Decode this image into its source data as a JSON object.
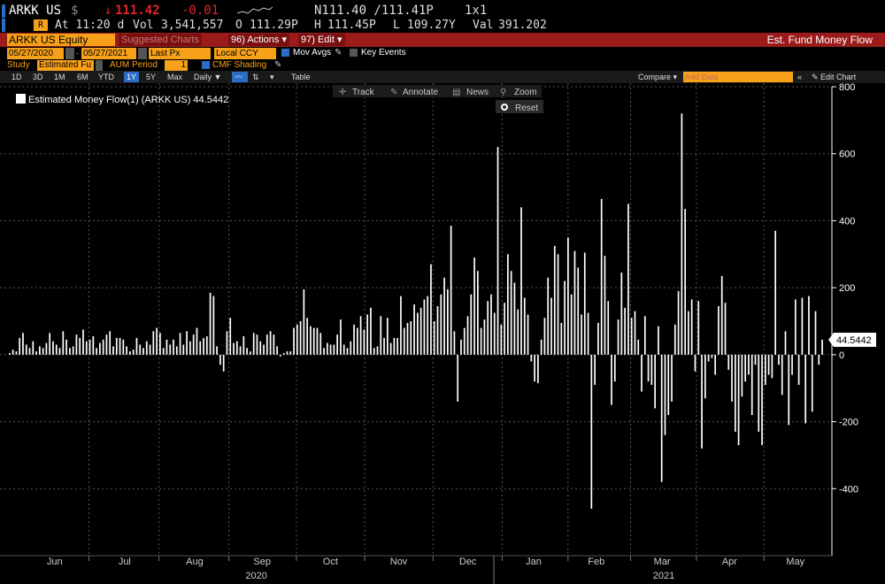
{
  "header": {
    "ticker": "ARKK US",
    "currency": "$",
    "last_price": "111.42",
    "change": "-0.01",
    "n_quote": "N111.40 /111.41P",
    "size": "1x1",
    "time_label": "At 11:20 d",
    "vol_label": "Vol",
    "vol_value": "3,541,557",
    "open_label": "O",
    "open_value": "111.29P",
    "high_label": "H",
    "high_value": "111.45P",
    "low_label": "L",
    "low_value": "109.27Y",
    "val_label": "Val",
    "val_value": "391.202"
  },
  "toolbar": {
    "security": "ARKK US Equity",
    "suggested": "Suggested Charts",
    "actions": "96) Actions",
    "edit": "97) Edit",
    "title": "Est. Fund Money Flow",
    "date_from": "05/27/2020",
    "date_to": "05/27/2021",
    "last_px": "Last Px",
    "ccy": "Local CCY",
    "mov_avgs": "Mov Avgs",
    "key_events": "Key Events",
    "study_label": "Study",
    "study_value": "Estimated Fu",
    "aum_label": "AUM Period",
    "aum_value": "1",
    "cmf_label": "CMF Shading",
    "periods": [
      "1D",
      "3D",
      "1M",
      "6M",
      "YTD",
      "1Y",
      "5Y",
      "Max"
    ],
    "selected_period": "1Y",
    "daily": "Daily",
    "table": "Table",
    "compare": "Compare",
    "add_data": "Add Data",
    "edit_chart": "Edit Chart",
    "track": "Track",
    "annotate": "Annotate",
    "news": "News",
    "zoom": "Zoom",
    "reset": "Reset"
  },
  "chart_data": {
    "type": "bar",
    "legend": "Estimated Money Flow(1) (ARKK US) 44.5442",
    "last_value_label": "44.5442",
    "last_value": 44.5442,
    "ylim": [
      -600,
      800
    ],
    "yticks": [
      800,
      600,
      400,
      200,
      0,
      -200,
      -400
    ],
    "ytick_labels": [
      "800",
      "600",
      "400",
      "200",
      "0",
      "-200",
      "-400"
    ],
    "months": [
      {
        "label": "Jun",
        "at": 0.06
      },
      {
        "label": "Jul",
        "at": 0.145
      },
      {
        "label": "Aug",
        "at": 0.23
      },
      {
        "label": "Sep",
        "at": 0.312
      },
      {
        "label": "Oct",
        "at": 0.395
      },
      {
        "label": "Nov",
        "at": 0.478
      },
      {
        "label": "Dec",
        "at": 0.562
      },
      {
        "label": "Jan",
        "at": 0.642
      },
      {
        "label": "Feb",
        "at": 0.718
      },
      {
        "label": "Mar",
        "at": 0.798
      },
      {
        "label": "Apr",
        "at": 0.88
      },
      {
        "label": "May",
        "at": 0.96
      }
    ],
    "years": [
      {
        "label": "2020",
        "at": 0.305
      },
      {
        "label": "2021",
        "at": 0.8
      }
    ],
    "grid": true,
    "values": [
      5,
      15,
      10,
      50,
      65,
      30,
      20,
      40,
      10,
      25,
      20,
      35,
      65,
      40,
      30,
      20,
      70,
      45,
      20,
      25,
      60,
      50,
      75,
      40,
      45,
      55,
      20,
      35,
      45,
      60,
      70,
      25,
      50,
      50,
      45,
      25,
      10,
      15,
      50,
      30,
      20,
      40,
      30,
      70,
      80,
      65,
      20,
      45,
      30,
      45,
      25,
      65,
      30,
      70,
      40,
      60,
      80,
      40,
      50,
      55,
      185,
      175,
      25,
      -30,
      -50,
      70,
      110,
      35,
      40,
      25,
      55,
      20,
      10,
      65,
      60,
      40,
      30,
      60,
      70,
      60,
      25,
      -5,
      5,
      10,
      10,
      80,
      90,
      100,
      195,
      110,
      85,
      80,
      80,
      65,
      20,
      35,
      30,
      30,
      60,
      105,
      30,
      20,
      40,
      90,
      80,
      115,
      75,
      120,
      140,
      20,
      25,
      115,
      50,
      110,
      35,
      50,
      50,
      175,
      80,
      95,
      100,
      150,
      125,
      140,
      165,
      175,
      270,
      100,
      145,
      180,
      230,
      195,
      385,
      70,
      -140,
      45,
      80,
      115,
      180,
      290,
      250,
      80,
      105,
      160,
      180,
      125,
      620,
      90,
      155,
      300,
      250,
      215,
      135,
      440,
      170,
      120,
      -20,
      -80,
      -85,
      45,
      110,
      230,
      170,
      325,
      300,
      95,
      220,
      350,
      180,
      310,
      260,
      120,
      305,
      125,
      -460,
      -90,
      95,
      465,
      295,
      160,
      -150,
      -80,
      105,
      245,
      140,
      450,
      110,
      130,
      45,
      -110,
      115,
      -80,
      -90,
      -160,
      85,
      -380,
      -240,
      -180,
      -140,
      90,
      190,
      720,
      435,
      130,
      165,
      -50,
      160,
      -280,
      -130,
      -20,
      -10,
      -60,
      145,
      235,
      155,
      -45,
      -140,
      -230,
      -270,
      -125,
      -80,
      -60,
      -180,
      -30,
      -230,
      -270,
      -90,
      -60,
      -70,
      370,
      -30,
      -120,
      70,
      -210,
      -60,
      165,
      -90,
      170,
      -205,
      175,
      -170,
      130,
      -30,
      45
    ]
  }
}
